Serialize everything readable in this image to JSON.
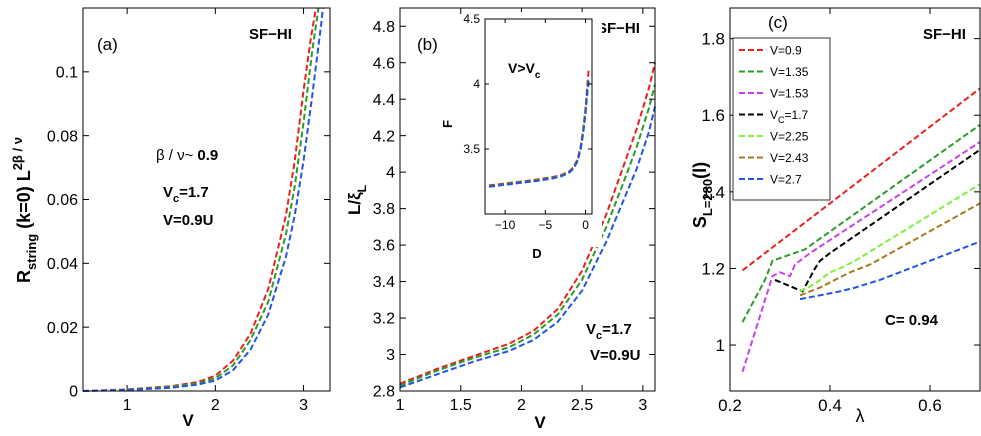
{
  "chart_data": [
    {
      "type": "line",
      "panel_label": "(a)",
      "annotation": "SF−HI",
      "ylabel": "R_string (k=0) L^{2β/ν}",
      "ylabel_main": "R",
      "ylabel_sub": "string",
      "ylabel_mid": " (k=0) L",
      "ylabel_sup": "2β / ν",
      "xlabel": "V",
      "xlim": [
        0.5,
        3.3
      ],
      "ylim": [
        0,
        0.12
      ],
      "xticks": [
        1,
        2,
        3
      ],
      "yticks": [
        0,
        0.02,
        0.04,
        0.06,
        0.08,
        0.1
      ],
      "ytick_labels": [
        "0",
        "0.02",
        "0.04",
        "0.06",
        "0.08",
        "0.1"
      ],
      "exponent_text": "β / ν~",
      "exponent_value": "0.9",
      "vc_main": "V",
      "vc_sub": "c",
      "vc_value": "=1.7",
      "v_text": "V=0.9U",
      "series": [
        {
          "name": "red",
          "color": "#e8211d",
          "x": [
            0.5,
            1.0,
            1.5,
            1.8,
            2.0,
            2.2,
            2.4,
            2.6,
            2.8,
            2.9,
            3.0,
            3.08,
            3.14
          ],
          "values": [
            0.0,
            0.0005,
            0.0015,
            0.0028,
            0.0048,
            0.0095,
            0.018,
            0.032,
            0.055,
            0.072,
            0.094,
            0.11,
            0.12
          ]
        },
        {
          "name": "green",
          "color": "#2a9a2a",
          "x": [
            0.5,
            1.0,
            1.5,
            1.8,
            2.0,
            2.2,
            2.4,
            2.6,
            2.8,
            2.9,
            3.0,
            3.1,
            3.17
          ],
          "values": [
            0.0,
            0.0004,
            0.0013,
            0.0024,
            0.004,
            0.008,
            0.016,
            0.028,
            0.049,
            0.064,
            0.084,
            0.107,
            0.12
          ]
        },
        {
          "name": "blue",
          "color": "#2255e6",
          "x": [
            0.5,
            1.0,
            1.5,
            1.8,
            2.0,
            2.2,
            2.4,
            2.6,
            2.8,
            2.9,
            3.0,
            3.1,
            3.2,
            3.22
          ],
          "values": [
            0.0,
            0.0003,
            0.001,
            0.002,
            0.0033,
            0.0065,
            0.013,
            0.024,
            0.042,
            0.055,
            0.072,
            0.093,
            0.115,
            0.12
          ]
        }
      ]
    },
    {
      "type": "line",
      "panel_label": "(b)",
      "annotation": "SF−HI",
      "ylabel": "L/ξ_L",
      "ylabel_main": "L/ξ",
      "ylabel_sub": "L",
      "xlabel": "V",
      "xlim": [
        1,
        3.1
      ],
      "ylim": [
        2.8,
        4.9
      ],
      "xticks": [
        1,
        1.5,
        2,
        2.5,
        3
      ],
      "xtick_labels": [
        "1",
        "1.5",
        "2",
        "2.5",
        "3"
      ],
      "yticks": [
        2.8,
        3,
        3.2,
        3.4,
        3.6,
        3.8,
        4,
        4.2,
        4.4,
        4.6,
        4.8
      ],
      "ytick_labels": [
        "2.8",
        "3",
        "3.2",
        "3.4",
        "3.6",
        "3.8",
        "4",
        "4.2",
        "4.4",
        "4.6",
        "4.8"
      ],
      "vc_main": "V",
      "vc_sub": "c",
      "vc_value": "=1.7",
      "v_text": "V=0.9U",
      "series": [
        {
          "name": "red",
          "color": "#e8211d",
          "x": [
            1.0,
            1.3,
            1.6,
            1.9,
            2.1,
            2.3,
            2.5,
            2.7,
            2.85,
            2.95,
            3.05,
            3.1
          ],
          "values": [
            2.84,
            2.92,
            2.99,
            3.06,
            3.13,
            3.25,
            3.46,
            3.77,
            4.05,
            4.24,
            4.46,
            4.6
          ]
        },
        {
          "name": "green",
          "color": "#2a9a2a",
          "x": [
            1.0,
            1.3,
            1.6,
            1.9,
            2.1,
            2.3,
            2.5,
            2.7,
            2.85,
            2.95,
            3.05,
            3.1
          ],
          "values": [
            2.83,
            2.91,
            2.98,
            3.04,
            3.11,
            3.22,
            3.41,
            3.7,
            3.96,
            4.14,
            4.35,
            4.48
          ]
        },
        {
          "name": "blue",
          "color": "#2255e6",
          "x": [
            1.0,
            1.3,
            1.6,
            1.9,
            2.1,
            2.3,
            2.5,
            2.7,
            2.85,
            2.95,
            3.05,
            3.1
          ],
          "values": [
            2.82,
            2.89,
            2.96,
            3.02,
            3.08,
            3.18,
            3.35,
            3.62,
            3.86,
            4.02,
            4.22,
            4.36
          ]
        }
      ],
      "inset": {
        "annotation_main": "V>V",
        "annotation_sub": "c",
        "xlabel": "D",
        "ylabel": "F",
        "xlim": [
          -12.5,
          0.8
        ],
        "ylim": [
          3,
          4.5
        ],
        "xticks": [
          -10,
          -5,
          0
        ],
        "xtick_labels": [
          "−10",
          "−5",
          "0"
        ],
        "yticks": [
          3.5,
          4,
          4.5
        ],
        "ytick_labels": [
          "3.5",
          "4",
          "4.5"
        ],
        "series": [
          {
            "name": "red",
            "color": "#e8211d",
            "x": [
              -12,
              -10,
              -8,
              -6,
              -4,
              -3,
              -2,
              -1.5,
              -1,
              -0.6,
              -0.3,
              0,
              0.2,
              0.4
            ],
            "values": [
              3.22,
              3.235,
              3.25,
              3.265,
              3.285,
              3.3,
              3.33,
              3.36,
              3.42,
              3.52,
              3.65,
              3.82,
              3.98,
              4.12
            ]
          },
          {
            "name": "green",
            "color": "#2a9a2a",
            "x": [
              -12,
              -10,
              -8,
              -6,
              -4,
              -3,
              -2,
              -1.5,
              -1,
              -0.6,
              -0.3,
              0,
              0.2,
              0.4
            ],
            "values": [
              3.215,
              3.23,
              3.245,
              3.26,
              3.28,
              3.295,
              3.325,
              3.355,
              3.41,
              3.51,
              3.63,
              3.8,
              3.95,
              4.05
            ]
          },
          {
            "name": "blue",
            "color": "#2255e6",
            "x": [
              -12,
              -10,
              -8,
              -6,
              -4,
              -3,
              -2,
              -1.5,
              -1,
              -0.6,
              -0.3,
              0,
              0.2,
              0.4
            ],
            "values": [
              3.21,
              3.225,
              3.24,
              3.255,
              3.275,
              3.29,
              3.32,
              3.35,
              3.405,
              3.5,
              3.62,
              3.78,
              3.92,
              4.02
            ]
          }
        ]
      }
    },
    {
      "type": "line",
      "panel_label": "(c)",
      "annotation": "SF−HI",
      "ylabel": "S_{L=280}(l)",
      "ylabel_main": "S",
      "ylabel_sub": "L=280",
      "ylabel_tail": "(l)",
      "xlabel": "λ",
      "xlim": [
        0.2,
        0.7
      ],
      "ylim": [
        0.88,
        1.88
      ],
      "xticks": [
        0.2,
        0.4,
        0.6
      ],
      "xtick_labels": [
        "0.2",
        "0.4",
        "0.6"
      ],
      "yticks": [
        1,
        1.2,
        1.4,
        1.6,
        1.8
      ],
      "ytick_labels": [
        "1",
        "1.2",
        "1.4",
        "1.6",
        "1.8"
      ],
      "c_text": "C= 0.94",
      "legend_position": "top-left",
      "series": [
        {
          "name": "V=0.9",
          "label_main": "V=0.9",
          "label_sub": "",
          "label_tail": "",
          "color": "#e8211d",
          "x": [
            0.225,
            0.7
          ],
          "values": [
            1.195,
            1.67
          ]
        },
        {
          "name": "V=1.35",
          "label_main": "V=1.35",
          "label_sub": "",
          "label_tail": "",
          "color": "#2a9a2a",
          "x": [
            0.225,
            0.27,
            0.285,
            0.35,
            0.7
          ],
          "values": [
            1.06,
            1.17,
            1.22,
            1.25,
            1.575
          ]
        },
        {
          "name": "V=1.53",
          "label_main": "V=1.53",
          "label_sub": "",
          "label_tail": "",
          "color": "#c93ff0",
          "x": [
            0.225,
            0.285,
            0.3,
            0.32,
            0.33,
            0.36,
            0.7
          ],
          "values": [
            0.93,
            1.18,
            1.19,
            1.18,
            1.21,
            1.24,
            1.53
          ]
        },
        {
          "name": "V_c=1.7",
          "label_main": "V",
          "label_sub": "C",
          "label_tail": "=1.7",
          "color": "#000000",
          "x": [
            0.29,
            0.345,
            0.37,
            0.38,
            0.4,
            0.7
          ],
          "values": [
            1.17,
            1.14,
            1.2,
            1.22,
            1.24,
            1.51
          ]
        },
        {
          "name": "V=2.25",
          "label_main": "V=2.25",
          "label_sub": "",
          "label_tail": "",
          "color": "#7ef03a",
          "x": [
            0.34,
            0.37,
            0.4,
            0.42,
            0.45,
            0.7
          ],
          "values": [
            1.14,
            1.16,
            1.19,
            1.2,
            1.22,
            1.42
          ]
        },
        {
          "name": "V=2.43",
          "label_main": "V=2.43",
          "label_sub": "",
          "label_tail": "",
          "color": "#a87a1c",
          "x": [
            0.34,
            0.38,
            0.41,
            0.44,
            0.48,
            0.7
          ],
          "values": [
            1.13,
            1.15,
            1.17,
            1.19,
            1.21,
            1.37
          ]
        },
        {
          "name": "V=2.7",
          "label_main": "V=2.7",
          "label_sub": "",
          "label_tail": "",
          "color": "#2255e6",
          "x": [
            0.34,
            0.38,
            0.42,
            0.45,
            0.5,
            0.7
          ],
          "values": [
            1.12,
            1.13,
            1.14,
            1.15,
            1.17,
            1.27
          ]
        }
      ]
    }
  ]
}
